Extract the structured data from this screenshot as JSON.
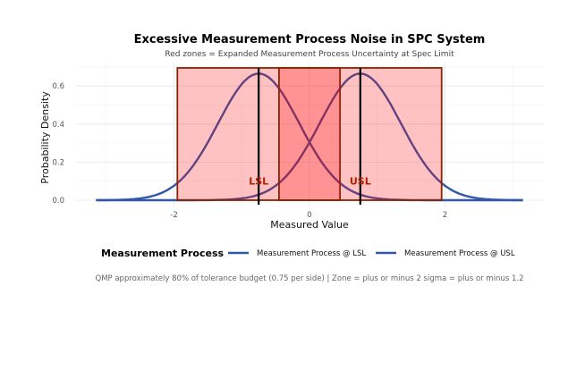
{
  "chart_data": {
    "type": "line",
    "title": "Excessive Measurement Process Noise in SPC System",
    "subtitle": "Red zones = Expanded Measurement Process Uncertainty at Spec Limit",
    "xlabel": "Measured Value",
    "ylabel": "Probability Density",
    "xlim": [
      -3.15,
      3.15
    ],
    "ylim": [
      0,
      0.7
    ],
    "x_ticks": [
      "-2",
      "0",
      "2"
    ],
    "x_tick_values": [
      -2,
      0,
      2
    ],
    "y_ticks": [
      "0.0",
      "0.2",
      "0.4",
      "0.6"
    ],
    "y_tick_values": [
      0,
      0.2,
      0.4,
      0.6
    ],
    "grid": true,
    "legend": {
      "title": "Measurement Process",
      "placement": "bottom"
    },
    "series": [
      {
        "name": "Measurement Process @ LSL",
        "distribution": "normal",
        "mean": -0.75,
        "sd": 0.6,
        "color": "#3157a8"
      },
      {
        "name": "Measurement Process @ USL",
        "distribution": "normal",
        "mean": 0.75,
        "sd": 0.6,
        "color": "#3157a8"
      }
    ],
    "zones": [
      {
        "xmin": -1.95,
        "xmax": 0.45,
        "ymax": 0.695,
        "fill": "#ff0000",
        "label": "LSL"
      },
      {
        "xmin": -0.45,
        "xmax": 1.95,
        "ymax": 0.695,
        "fill": "#ff0000",
        "label": "USL"
      }
    ],
    "vlines": [
      {
        "x": -0.75,
        "label": "LSL"
      },
      {
        "x": 0.75,
        "label": "USL"
      }
    ],
    "caption": "QMP approximately 80% of tolerance budget (0.75 per side) | Zone = plus or minus 2 sigma = plus or minus 1.2"
  }
}
